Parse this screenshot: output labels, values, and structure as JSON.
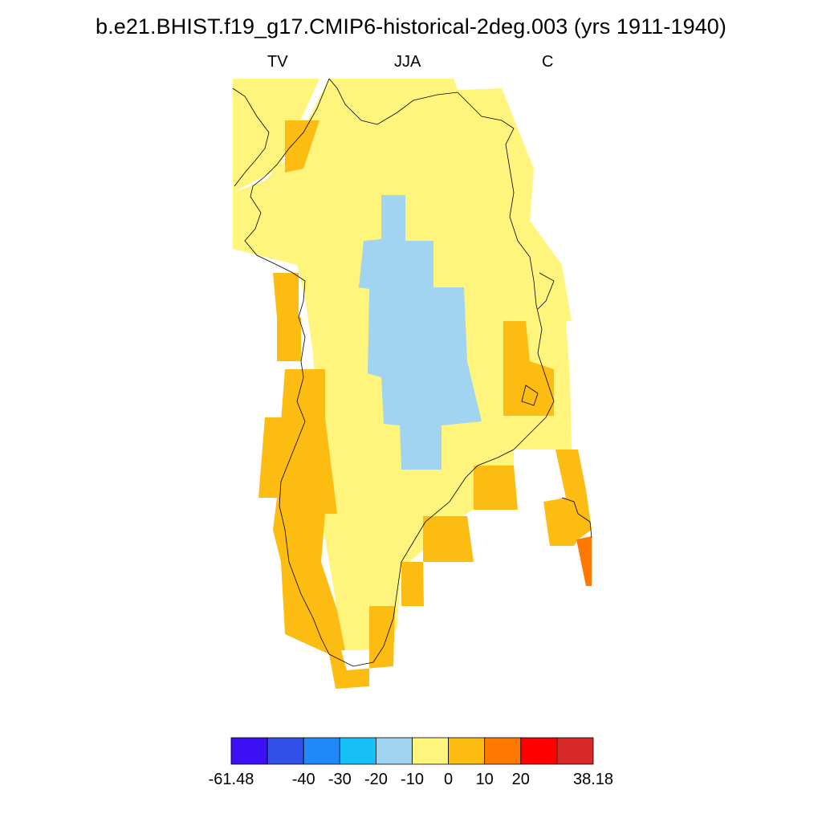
{
  "title": "b.e21.BHIST.f19_g17.CMIP6-historical-2deg.003 (yrs 1911-1940)",
  "labels": {
    "left": "TV",
    "center": "JJA",
    "right": "C"
  },
  "colorbar": {
    "colors": [
      "#3c10f4",
      "#3050e8",
      "#2088f8",
      "#18c0f8",
      "#a0d4f0",
      "#fff47c",
      "#fdbc12",
      "#ff7800",
      "#ff0000",
      "#d82828"
    ],
    "tick_labels": [
      "-61.48",
      "-40",
      "-30",
      "-20",
      "-10",
      "0",
      "10",
      "20",
      "38.18"
    ]
  }
}
